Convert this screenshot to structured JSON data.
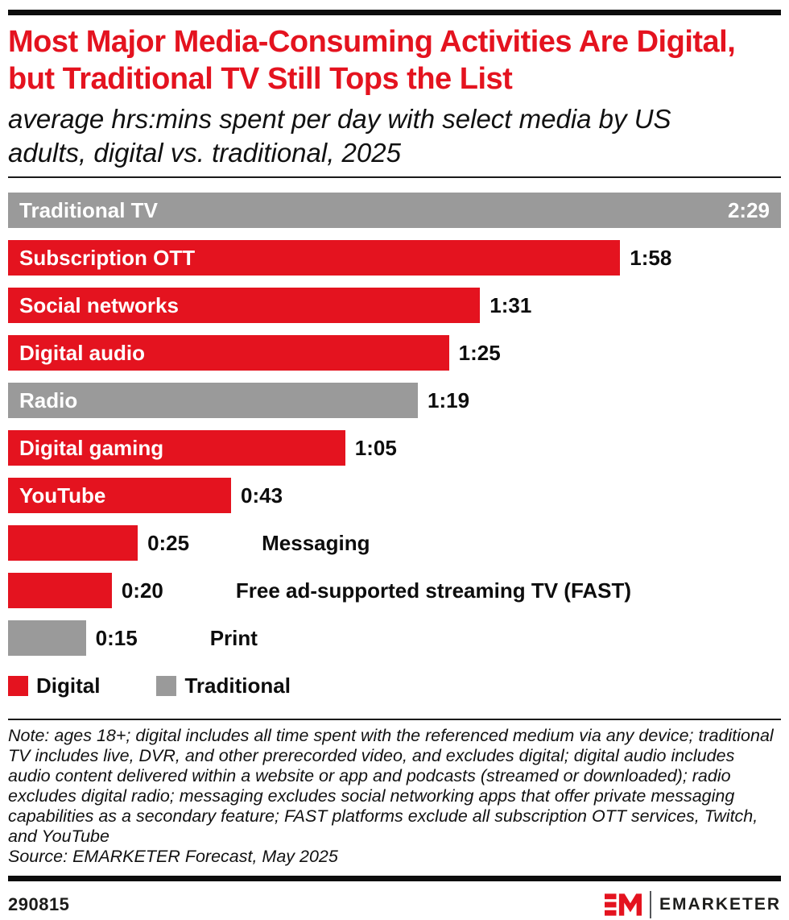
{
  "header": {
    "title": "Most Major Media-Consuming Activities Are Digital, but Traditional TV Still Tops the List",
    "subtitle": "average hrs:mins spent per day with select media by US adults, digital vs. traditional, 2025"
  },
  "chart_data": {
    "type": "bar",
    "orientation": "horizontal",
    "title": "Most Major Media-Consuming Activities Are Digital, but Traditional TV Still Tops the List",
    "subtitle": "average hrs:mins spent per day with select media by US adults, digital vs. traditional, 2025",
    "unit": "hrs:mins per day",
    "max_minutes": 149,
    "grid": false,
    "legend_position": "bottom",
    "colors": {
      "Digital": "#e4131f",
      "Traditional": "#9a9a9a"
    },
    "bars": [
      {
        "label": "Traditional TV",
        "value": "2:29",
        "minutes": 149,
        "series": "Traditional",
        "label_inside": true,
        "value_inside": true
      },
      {
        "label": "Subscription OTT",
        "value": "1:58",
        "minutes": 118,
        "series": "Digital",
        "label_inside": true,
        "value_inside": false
      },
      {
        "label": "Social networks",
        "value": "1:31",
        "minutes": 91,
        "series": "Digital",
        "label_inside": true,
        "value_inside": false
      },
      {
        "label": "Digital audio",
        "value": "1:25",
        "minutes": 85,
        "series": "Digital",
        "label_inside": true,
        "value_inside": false
      },
      {
        "label": "Radio",
        "value": "1:19",
        "minutes": 79,
        "series": "Traditional",
        "label_inside": true,
        "value_inside": false
      },
      {
        "label": "Digital gaming",
        "value": "1:05",
        "minutes": 65,
        "series": "Digital",
        "label_inside": true,
        "value_inside": false
      },
      {
        "label": "YouTube",
        "value": "0:43",
        "minutes": 43,
        "series": "Digital",
        "label_inside": true,
        "value_inside": false
      },
      {
        "label": "Messaging",
        "value": "0:25",
        "minutes": 25,
        "series": "Digital",
        "label_inside": false,
        "value_inside": false
      },
      {
        "label": "Free ad-supported streaming TV (FAST)",
        "value": "0:20",
        "minutes": 20,
        "series": "Digital",
        "label_inside": false,
        "value_inside": false
      },
      {
        "label": "Print",
        "value": "0:15",
        "minutes": 15,
        "series": "Traditional",
        "label_inside": false,
        "value_inside": false
      }
    ],
    "legend": [
      {
        "label": "Digital",
        "color": "#e4131f"
      },
      {
        "label": "Traditional",
        "color": "#9a9a9a"
      }
    ]
  },
  "footer": {
    "note": "Note: ages 18+; digital includes all time spent with the referenced medium via any device; traditional TV includes live, DVR, and other prerecorded video, and excludes digital; digital audio includes audio content delivered within a website or app and podcasts (streamed or downloaded); radio excludes digital radio; messaging excludes social networking apps that offer private messaging capabilities as a secondary feature; FAST platforms exclude all subscription OTT services, Twitch, and YouTube",
    "source": "Source: EMARKETER Forecast, May 2025",
    "chart_id": "290815",
    "brand": "EMARKETER"
  }
}
